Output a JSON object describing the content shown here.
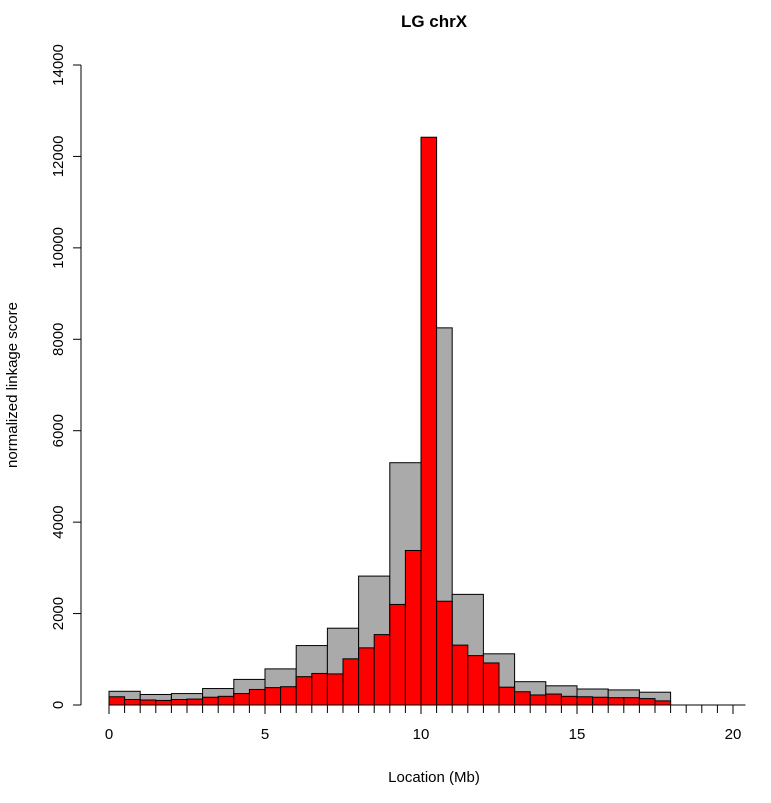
{
  "chart_data": {
    "type": "bar",
    "title": "LG chrX",
    "xlabel": "Location (Mb)",
    "ylabel": "normalized linkage score",
    "xlim": [
      0,
      20.4
    ],
    "ylim": [
      0,
      14000
    ],
    "x_ticks": [
      0,
      5,
      10,
      15,
      20
    ],
    "y_ticks": [
      0,
      2000,
      4000,
      6000,
      8000,
      10000,
      12000,
      14000
    ],
    "grid": false,
    "legend": "none",
    "series": [
      {
        "color": "#aaaaaa",
        "bin_width": 1,
        "bins": [
          {
            "start": 0,
            "value": 300
          },
          {
            "start": 1,
            "value": 230
          },
          {
            "start": 2,
            "value": 250
          },
          {
            "start": 3,
            "value": 360
          },
          {
            "start": 4,
            "value": 560
          },
          {
            "start": 5,
            "value": 790
          },
          {
            "start": 6,
            "value": 1300
          },
          {
            "start": 7,
            "value": 1680
          },
          {
            "start": 8,
            "value": 2820
          },
          {
            "start": 9,
            "value": 5300
          },
          {
            "start": 10,
            "value": 8250
          },
          {
            "start": 11,
            "value": 2420
          },
          {
            "start": 12,
            "value": 1120
          },
          {
            "start": 13,
            "value": 510
          },
          {
            "start": 14,
            "value": 420
          },
          {
            "start": 15,
            "value": 350
          },
          {
            "start": 16,
            "value": 330
          },
          {
            "start": 17,
            "value": 280
          }
        ]
      },
      {
        "color": "#ff0000",
        "bin_width": 0.5,
        "bins": [
          {
            "start": 0.0,
            "value": 180
          },
          {
            "start": 0.5,
            "value": 120
          },
          {
            "start": 1.0,
            "value": 110
          },
          {
            "start": 1.5,
            "value": 100
          },
          {
            "start": 2.0,
            "value": 120
          },
          {
            "start": 2.5,
            "value": 130
          },
          {
            "start": 3.0,
            "value": 170
          },
          {
            "start": 3.5,
            "value": 190
          },
          {
            "start": 4.0,
            "value": 250
          },
          {
            "start": 4.5,
            "value": 340
          },
          {
            "start": 5.0,
            "value": 380
          },
          {
            "start": 5.5,
            "value": 400
          },
          {
            "start": 6.0,
            "value": 620
          },
          {
            "start": 6.5,
            "value": 690
          },
          {
            "start": 7.0,
            "value": 680
          },
          {
            "start": 7.5,
            "value": 1010
          },
          {
            "start": 8.0,
            "value": 1250
          },
          {
            "start": 8.5,
            "value": 1540
          },
          {
            "start": 9.0,
            "value": 2200
          },
          {
            "start": 9.5,
            "value": 3380
          },
          {
            "start": 10.0,
            "value": 12420
          },
          {
            "start": 10.5,
            "value": 2270
          },
          {
            "start": 11.0,
            "value": 1310
          },
          {
            "start": 11.5,
            "value": 1080
          },
          {
            "start": 12.0,
            "value": 920
          },
          {
            "start": 12.5,
            "value": 390
          },
          {
            "start": 13.0,
            "value": 290
          },
          {
            "start": 13.5,
            "value": 220
          },
          {
            "start": 14.0,
            "value": 240
          },
          {
            "start": 14.5,
            "value": 190
          },
          {
            "start": 15.0,
            "value": 180
          },
          {
            "start": 15.5,
            "value": 170
          },
          {
            "start": 16.0,
            "value": 160
          },
          {
            "start": 16.5,
            "value": 160
          },
          {
            "start": 17.0,
            "value": 140
          },
          {
            "start": 17.5,
            "value": 90
          }
        ]
      }
    ]
  }
}
